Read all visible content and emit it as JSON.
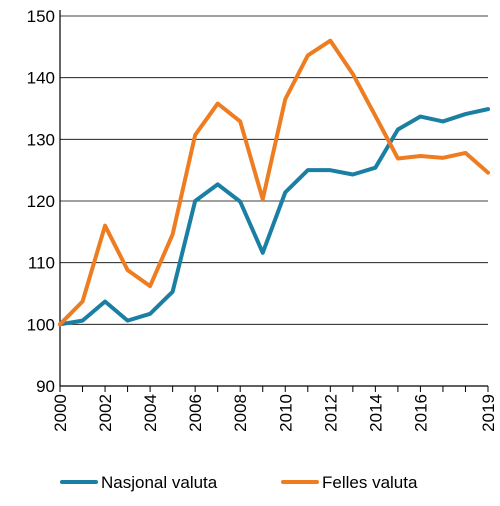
{
  "chart_data": {
    "type": "line",
    "x": [
      2000,
      2001,
      2002,
      2003,
      2004,
      2005,
      2006,
      2007,
      2008,
      2009,
      2010,
      2011,
      2012,
      2013,
      2014,
      2015,
      2016,
      2017,
      2018,
      2019
    ],
    "x_tick_labels": [
      "2000",
      "2002",
      "2004",
      "2006",
      "2008",
      "2010",
      "2012",
      "2014",
      "2016",
      "2019"
    ],
    "y_tick_labels": [
      "90",
      "100",
      "110",
      "120",
      "130",
      "140",
      "150"
    ],
    "ylim": [
      90,
      150
    ],
    "xlim": [
      2000,
      2019
    ],
    "grid": "horizontal",
    "legend_position": "bottom",
    "series": [
      {
        "name": "Nasjonal valuta",
        "color": "#1a7fa3",
        "values": [
          100.0,
          100.6,
          103.7,
          100.6,
          101.7,
          105.3,
          120.0,
          122.7,
          119.9,
          111.6,
          121.4,
          125.0,
          125.0,
          124.3,
          125.4,
          131.6,
          133.7,
          132.9,
          134.1,
          134.9
        ]
      },
      {
        "name": "Felles valuta",
        "color": "#ee7d22",
        "values": [
          100.0,
          103.7,
          116.0,
          108.8,
          106.2,
          114.6,
          130.7,
          135.8,
          132.9,
          120.3,
          136.5,
          143.6,
          146.0,
          140.6,
          133.8,
          126.9,
          127.3,
          127.0,
          127.8,
          124.6
        ]
      }
    ]
  }
}
